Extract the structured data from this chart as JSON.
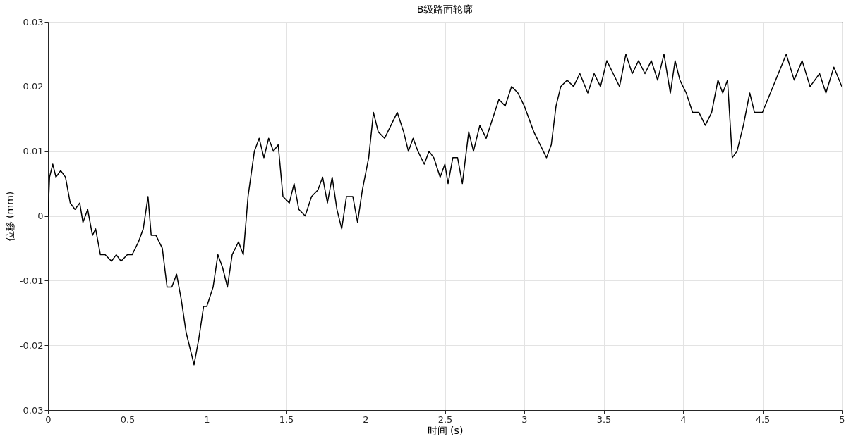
{
  "chart_data": {
    "type": "line",
    "title": "B级路面轮廓",
    "xlabel": "时间 (s)",
    "ylabel": "位移 (mm)",
    "x": [
      0,
      0.01,
      0.03,
      0.05,
      0.08,
      0.11,
      0.14,
      0.17,
      0.2,
      0.22,
      0.25,
      0.28,
      0.3,
      0.33,
      0.36,
      0.4,
      0.43,
      0.46,
      0.5,
      0.53,
      0.57,
      0.6,
      0.63,
      0.65,
      0.68,
      0.72,
      0.75,
      0.78,
      0.81,
      0.84,
      0.87,
      0.9,
      0.92,
      0.95,
      0.98,
      1.0,
      1.04,
      1.07,
      1.1,
      1.13,
      1.16,
      1.2,
      1.23,
      1.26,
      1.3,
      1.33,
      1.36,
      1.39,
      1.42,
      1.45,
      1.48,
      1.52,
      1.55,
      1.58,
      1.62,
      1.66,
      1.7,
      1.73,
      1.76,
      1.79,
      1.82,
      1.85,
      1.88,
      1.92,
      1.95,
      1.98,
      2.02,
      2.05,
      2.08,
      2.12,
      2.16,
      2.2,
      2.24,
      2.27,
      2.3,
      2.33,
      2.37,
      2.4,
      2.43,
      2.47,
      2.5,
      2.52,
      2.55,
      2.58,
      2.61,
      2.65,
      2.68,
      2.72,
      2.76,
      2.8,
      2.84,
      2.88,
      2.92,
      2.96,
      3.0,
      3.03,
      3.06,
      3.1,
      3.14,
      3.17,
      3.2,
      3.23,
      3.27,
      3.31,
      3.35,
      3.4,
      3.44,
      3.48,
      3.52,
      3.56,
      3.6,
      3.64,
      3.68,
      3.72,
      3.76,
      3.8,
      3.84,
      3.88,
      3.92,
      3.95,
      3.98,
      4.02,
      4.06,
      4.1,
      4.14,
      4.18,
      4.22,
      4.25,
      4.28,
      4.31,
      4.34,
      4.38,
      4.42,
      4.45,
      4.5,
      4.55,
      4.6,
      4.65,
      4.7,
      4.75,
      4.8,
      4.86,
      4.9,
      4.95,
      5.0
    ],
    "series": [
      {
        "color": "#000000",
        "values": [
          0,
          0.006,
          0.008,
          0.006,
          0.007,
          0.006,
          0.002,
          0.001,
          0.002,
          -0.001,
          0.001,
          -0.003,
          -0.002,
          -0.006,
          -0.006,
          -0.007,
          -0.006,
          -0.007,
          -0.006,
          -0.006,
          -0.004,
          -0.002,
          0.003,
          -0.003,
          -0.003,
          -0.005,
          -0.011,
          -0.011,
          -0.009,
          -0.013,
          -0.018,
          -0.021,
          -0.023,
          -0.019,
          -0.014,
          -0.014,
          -0.011,
          -0.006,
          -0.008,
          -0.011,
          -0.006,
          -0.004,
          -0.006,
          0.003,
          0.01,
          0.012,
          0.009,
          0.012,
          0.01,
          0.011,
          0.003,
          0.002,
          0.005,
          0.001,
          0.0,
          0.003,
          0.004,
          0.006,
          0.002,
          0.006,
          0.001,
          -0.002,
          0.003,
          0.003,
          -0.001,
          0.004,
          0.009,
          0.016,
          0.013,
          0.012,
          0.014,
          0.016,
          0.013,
          0.01,
          0.012,
          0.01,
          0.008,
          0.01,
          0.009,
          0.006,
          0.008,
          0.005,
          0.009,
          0.009,
          0.005,
          0.013,
          0.01,
          0.014,
          0.012,
          0.015,
          0.018,
          0.017,
          0.02,
          0.019,
          0.017,
          0.015,
          0.013,
          0.011,
          0.009,
          0.011,
          0.017,
          0.02,
          0.021,
          0.02,
          0.022,
          0.019,
          0.022,
          0.02,
          0.024,
          0.022,
          0.02,
          0.025,
          0.022,
          0.024,
          0.022,
          0.024,
          0.021,
          0.025,
          0.019,
          0.024,
          0.021,
          0.019,
          0.016,
          0.016,
          0.014,
          0.016,
          0.021,
          0.019,
          0.021,
          0.009,
          0.01,
          0.014,
          0.019,
          0.016,
          0.016,
          0.019,
          0.022,
          0.025,
          0.021,
          0.024,
          0.02,
          0.022,
          0.019,
          0.023,
          0.02
        ]
      }
    ],
    "xlim": [
      0,
      5
    ],
    "xticks": [
      0,
      0.5,
      1,
      1.5,
      2,
      2.5,
      3,
      3.5,
      4,
      4.5,
      5
    ],
    "ylim": [
      -0.03,
      0.03
    ],
    "yticks": [
      -0.03,
      -0.02,
      -0.01,
      0,
      0.01,
      0.02,
      0.03
    ],
    "grid": true
  }
}
